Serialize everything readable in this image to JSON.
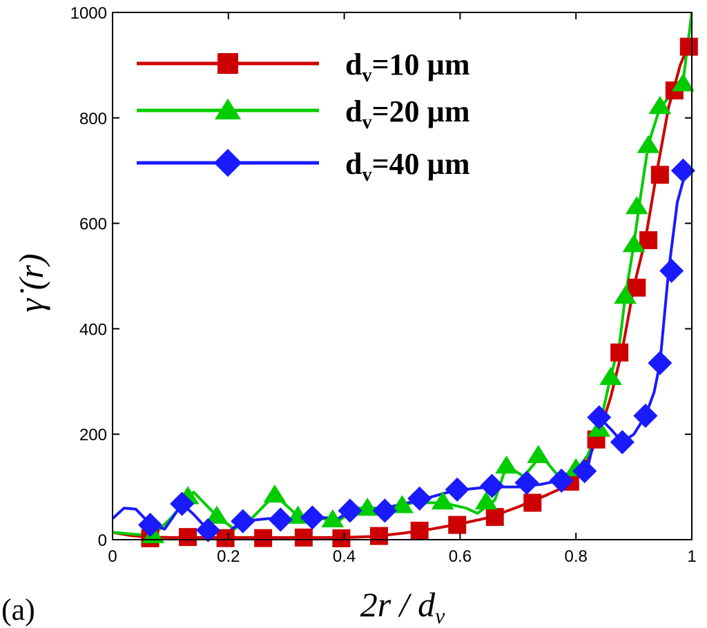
{
  "chart_data": {
    "type": "line",
    "panel_label": "(a)",
    "xlabel": "2r / d",
    "xlabel_sub": "v",
    "ylabel": "γ̇ (r)",
    "xlim": [
      0,
      1
    ],
    "ylim": [
      0,
      1000
    ],
    "x_ticks": [
      0,
      0.2,
      0.4,
      0.6,
      0.8,
      1
    ],
    "x_tick_labels": [
      "0",
      "0.2",
      "0.4",
      "0.6",
      "0.8",
      "1"
    ],
    "y_ticks": [
      0,
      200,
      400,
      600,
      800,
      1000
    ],
    "y_tick_labels": [
      "0",
      "200",
      "400",
      "600",
      "800",
      "1000"
    ],
    "legend_position": "top-left",
    "series": [
      {
        "name": "d_v=10 µm",
        "legend_main": "d",
        "legend_sub": "v",
        "legend_rest": "=10 µm",
        "color": "#cc0000",
        "marker": "square",
        "line": [
          [
            0,
            14
          ],
          [
            0.03,
            8
          ],
          [
            0.06,
            5
          ],
          [
            0.1,
            4
          ],
          [
            0.15,
            4
          ],
          [
            0.2,
            4
          ],
          [
            0.25,
            4
          ],
          [
            0.3,
            4
          ],
          [
            0.35,
            4
          ],
          [
            0.4,
            4
          ],
          [
            0.45,
            6
          ],
          [
            0.5,
            12
          ],
          [
            0.55,
            20
          ],
          [
            0.6,
            30
          ],
          [
            0.65,
            42
          ],
          [
            0.7,
            62
          ],
          [
            0.75,
            85
          ],
          [
            0.78,
            100
          ],
          [
            0.8,
            118
          ],
          [
            0.82,
            150
          ],
          [
            0.84,
            200
          ],
          [
            0.86,
            270
          ],
          [
            0.88,
            360
          ],
          [
            0.9,
            480
          ],
          [
            0.92,
            570
          ],
          [
            0.94,
            700
          ],
          [
            0.96,
            820
          ],
          [
            0.98,
            900
          ],
          [
            0.995,
            940
          ]
        ],
        "markers": [
          [
            0.065,
            1
          ],
          [
            0.13,
            5
          ],
          [
            0.195,
            3
          ],
          [
            0.26,
            3
          ],
          [
            0.33,
            4
          ],
          [
            0.395,
            2
          ],
          [
            0.46,
            7
          ],
          [
            0.53,
            17
          ],
          [
            0.595,
            28
          ],
          [
            0.66,
            43
          ],
          [
            0.725,
            70
          ],
          [
            0.79,
            110
          ],
          [
            0.835,
            190
          ],
          [
            0.875,
            355
          ],
          [
            0.905,
            478
          ],
          [
            0.925,
            568
          ],
          [
            0.945,
            692
          ],
          [
            0.97,
            852
          ],
          [
            0.995,
            935
          ]
        ]
      },
      {
        "name": "d_v=20 µm",
        "legend_main": "d",
        "legend_sub": "v",
        "legend_rest": "=20 µm",
        "color": "#00cc00",
        "marker": "triangle",
        "line": [
          [
            0,
            14
          ],
          [
            0.04,
            10
          ],
          [
            0.07,
            8
          ],
          [
            0.1,
            40
          ],
          [
            0.14,
            90
          ],
          [
            0.18,
            45
          ],
          [
            0.21,
            20
          ],
          [
            0.24,
            40
          ],
          [
            0.28,
            85
          ],
          [
            0.32,
            45
          ],
          [
            0.36,
            40
          ],
          [
            0.39,
            35
          ],
          [
            0.42,
            60
          ],
          [
            0.47,
            60
          ],
          [
            0.52,
            70
          ],
          [
            0.57,
            70
          ],
          [
            0.61,
            60
          ],
          [
            0.63,
            50
          ],
          [
            0.66,
            75
          ],
          [
            0.68,
            140
          ],
          [
            0.71,
            120
          ],
          [
            0.74,
            160
          ],
          [
            0.77,
            120
          ],
          [
            0.8,
            130
          ],
          [
            0.82,
            160
          ],
          [
            0.84,
            210
          ],
          [
            0.86,
            310
          ],
          [
            0.875,
            370
          ],
          [
            0.885,
            460
          ],
          [
            0.9,
            560
          ],
          [
            0.91,
            640
          ],
          [
            0.925,
            750
          ],
          [
            0.945,
            820
          ],
          [
            0.97,
            850
          ],
          [
            0.985,
            870
          ],
          [
            1.0,
            1000
          ]
        ],
        "markers": [
          [
            0.07,
            8
          ],
          [
            0.13,
            82
          ],
          [
            0.18,
            45
          ],
          [
            0.28,
            85
          ],
          [
            0.32,
            45
          ],
          [
            0.38,
            38
          ],
          [
            0.44,
            60
          ],
          [
            0.5,
            65
          ],
          [
            0.57,
            72
          ],
          [
            0.645,
            72
          ],
          [
            0.68,
            140
          ],
          [
            0.735,
            160
          ],
          [
            0.8,
            135
          ],
          [
            0.84,
            210
          ],
          [
            0.86,
            308
          ],
          [
            0.885,
            462
          ],
          [
            0.9,
            560
          ],
          [
            0.905,
            632
          ],
          [
            0.925,
            748
          ],
          [
            0.945,
            822
          ],
          [
            0.985,
            865
          ]
        ]
      },
      {
        "name": "d_v=40 µm",
        "legend_main": "d",
        "legend_sub": "v",
        "legend_rest": "=40 µm",
        "color": "#1a1aff",
        "marker": "diamond",
        "line": [
          [
            0,
            40
          ],
          [
            0.02,
            60
          ],
          [
            0.04,
            58
          ],
          [
            0.065,
            30
          ],
          [
            0.09,
            20
          ],
          [
            0.12,
            68
          ],
          [
            0.14,
            48
          ],
          [
            0.165,
            18
          ],
          [
            0.2,
            15
          ],
          [
            0.225,
            35
          ],
          [
            0.27,
            40
          ],
          [
            0.29,
            38
          ],
          [
            0.34,
            42
          ],
          [
            0.36,
            42
          ],
          [
            0.39,
            40
          ],
          [
            0.41,
            55
          ],
          [
            0.45,
            58
          ],
          [
            0.47,
            60
          ],
          [
            0.53,
            75
          ],
          [
            0.59,
            93
          ],
          [
            0.65,
            100
          ],
          [
            0.7,
            100
          ],
          [
            0.74,
            105
          ],
          [
            0.77,
            112
          ],
          [
            0.8,
            115
          ],
          [
            0.82,
            135
          ],
          [
            0.84,
            232
          ],
          [
            0.86,
            210
          ],
          [
            0.88,
            185
          ],
          [
            0.9,
            200
          ],
          [
            0.92,
            235
          ],
          [
            0.935,
            280
          ],
          [
            0.945,
            335
          ],
          [
            0.96,
            510
          ],
          [
            0.975,
            640
          ],
          [
            0.99,
            700
          ]
        ],
        "markers": [
          [
            0.065,
            28
          ],
          [
            0.12,
            68
          ],
          [
            0.165,
            18
          ],
          [
            0.225,
            35
          ],
          [
            0.29,
            38
          ],
          [
            0.345,
            42
          ],
          [
            0.41,
            55
          ],
          [
            0.47,
            55
          ],
          [
            0.53,
            78
          ],
          [
            0.595,
            95
          ],
          [
            0.655,
            102
          ],
          [
            0.715,
            108
          ],
          [
            0.775,
            112
          ],
          [
            0.815,
            130
          ],
          [
            0.84,
            232
          ],
          [
            0.88,
            185
          ],
          [
            0.92,
            235
          ],
          [
            0.945,
            335
          ],
          [
            0.965,
            510
          ],
          [
            0.985,
            700
          ]
        ]
      }
    ]
  }
}
